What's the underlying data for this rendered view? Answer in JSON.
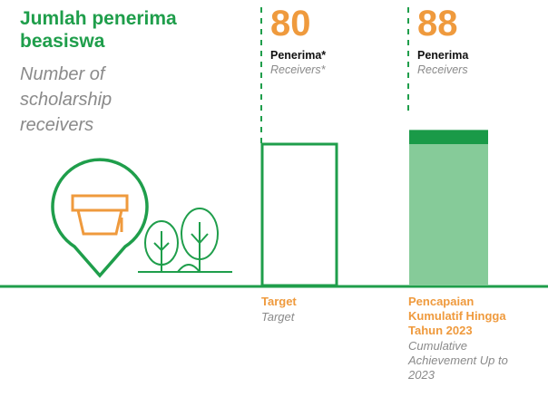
{
  "chart_data": {
    "type": "bar",
    "title": "Jumlah penerima beasiswa",
    "subtitle": "Number of scholarship receivers",
    "categories": [
      "Target",
      "Pencapaian Kumulatif Hingga Tahun 2023"
    ],
    "category_translations": [
      "Target",
      "Cumulative Achievement Up to 2023"
    ],
    "values": [
      80,
      88
    ],
    "value_units": [
      "Penerima*",
      "Penerima"
    ],
    "value_unit_translations": [
      "Receivers*",
      "Receivers"
    ],
    "colors": {
      "outline": "#1f9e4b",
      "achieved": "#86cb99",
      "excess": "#1a9a48",
      "accent": "#ef9a3d"
    }
  }
}
